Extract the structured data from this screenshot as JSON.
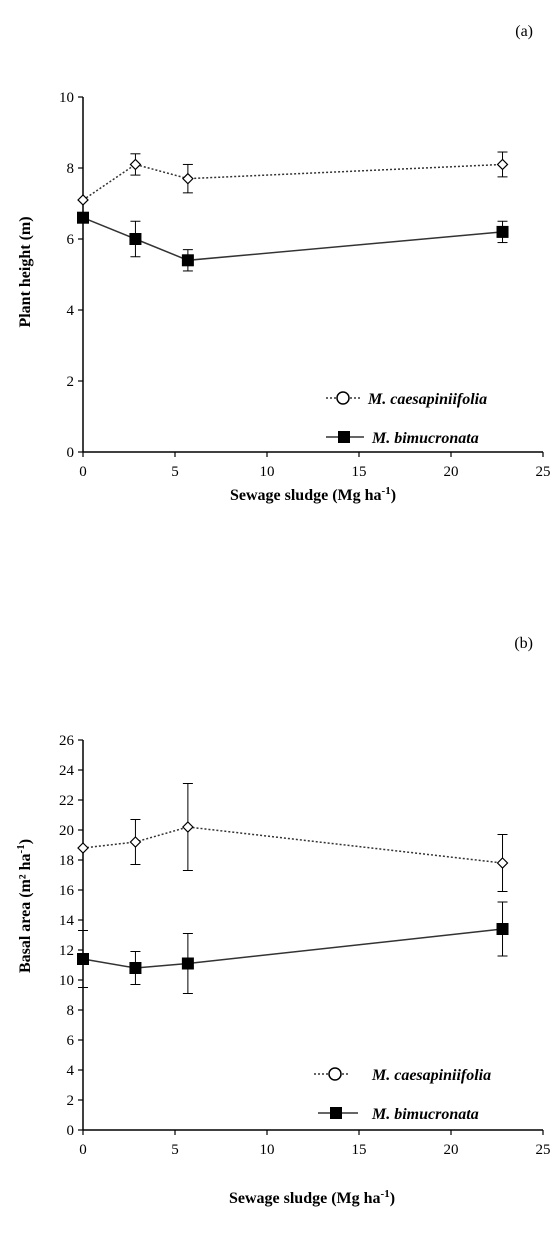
{
  "chart_data": [
    {
      "type": "line",
      "panel_label": "(a)",
      "xlabel": "Sewage sludge (Mg ha",
      "xlabel_sup": "-1",
      "xlabel_close": ")",
      "ylabel": "Plant height (m)",
      "ylabel_sup": "",
      "ylabel_close": "",
      "xlim": [
        0,
        25
      ],
      "ylim": [
        0,
        10
      ],
      "xticks": [
        0,
        5,
        10,
        15,
        20,
        25
      ],
      "yticks": [
        0,
        2,
        4,
        6,
        8,
        10
      ],
      "grid": false,
      "legend_position": "bottom-right",
      "x": [
        0,
        2.85,
        5.7,
        22.8
      ],
      "series": [
        {
          "name": "M. caesapiniifolia",
          "marker": "open-diamond",
          "line": "dotted",
          "values": [
            7.1,
            8.1,
            7.7,
            8.1
          ],
          "errors": [
            0,
            0.3,
            0.4,
            0.35
          ]
        },
        {
          "name": "M. bimucronata",
          "marker": "filled-square",
          "line": "solid",
          "values": [
            6.6,
            6.0,
            5.4,
            6.2
          ],
          "errors": [
            0,
            0.5,
            0.3,
            0.3
          ]
        }
      ]
    },
    {
      "type": "line",
      "panel_label": "(b)",
      "xlabel": "Sewage sludge (Mg ha",
      "xlabel_sup": "-1",
      "xlabel_close": ")",
      "ylabel": "Basal area (m² ha",
      "ylabel_sup": "-1",
      "ylabel_close": ")",
      "xlim": [
        0,
        25
      ],
      "ylim": [
        0,
        26
      ],
      "xticks": [
        0,
        5,
        10,
        15,
        20,
        25
      ],
      "yticks": [
        0,
        2,
        4,
        6,
        8,
        10,
        12,
        14,
        16,
        18,
        20,
        22,
        24,
        26
      ],
      "grid": false,
      "legend_position": "bottom-right",
      "x": [
        0,
        2.85,
        5.7,
        22.8
      ],
      "series": [
        {
          "name": "M. caesapiniifolia",
          "marker": "open-diamond",
          "line": "dotted",
          "values": [
            18.8,
            19.2,
            20.2,
            17.8
          ],
          "errors": [
            0,
            1.5,
            2.9,
            1.9
          ]
        },
        {
          "name": "M. bimucronata",
          "marker": "filled-square",
          "line": "solid",
          "values": [
            11.4,
            10.8,
            11.1,
            13.4
          ],
          "errors": [
            1.9,
            1.1,
            2.0,
            1.8
          ]
        }
      ]
    }
  ],
  "colors": {
    "lines": "#333333",
    "markers": "#000000"
  }
}
